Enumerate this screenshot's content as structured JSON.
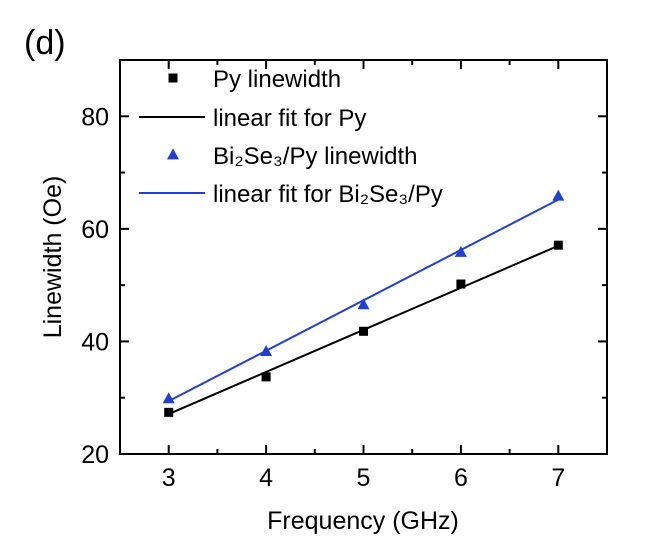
{
  "panel_label": "(d)",
  "chart_data": {
    "type": "scatter",
    "title": "",
    "xlabel": "Frequency (GHz)",
    "ylabel": "Linewidth (Oe)",
    "xlim": [
      2.5,
      7.5
    ],
    "ylim": [
      20,
      90
    ],
    "xticks": [
      3,
      4,
      5,
      6,
      7
    ],
    "yticks": [
      20,
      40,
      60,
      80
    ],
    "grid": false,
    "legend_position": "top-left",
    "series": [
      {
        "name": "Py linewidth",
        "kind": "markers",
        "marker": "square",
        "color": "#000000",
        "x": [
          3,
          4,
          5,
          6,
          7
        ],
        "y": [
          27.4,
          33.7,
          41.8,
          50.2,
          57.1
        ]
      },
      {
        "name": "linear fit for Py",
        "kind": "line",
        "color": "#000000",
        "x": [
          3,
          7
        ],
        "y": [
          27.1,
          57.0
        ]
      },
      {
        "name": "Bi₂Se₃/Py linewidth",
        "kind": "markers",
        "marker": "triangle",
        "color": "#1f3fd6",
        "x": [
          3,
          4,
          5,
          6,
          7
        ],
        "y": [
          29.8,
          38.2,
          46.5,
          55.8,
          65.8
        ]
      },
      {
        "name": "linear fit for Bi₂Se₃/Py",
        "kind": "line",
        "color": "#1f3fd6",
        "x": [
          3,
          7
        ],
        "y": [
          29.4,
          65.2
        ]
      }
    ]
  }
}
